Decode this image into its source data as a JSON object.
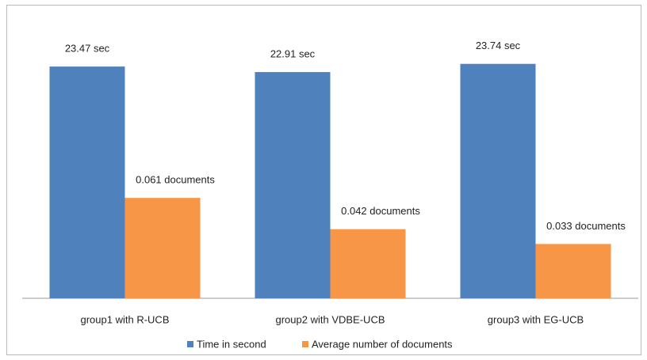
{
  "chart_data": {
    "type": "bar",
    "categories": [
      "group1  with R-UCB",
      "group2 with VDBE-UCB",
      "group3 with EG-UCB"
    ],
    "series": [
      {
        "name": "Time in second",
        "color": "#4f81bd",
        "values": [
          23.47,
          22.91,
          23.74
        ],
        "value_labels": [
          "23.47 sec",
          "22.91 sec",
          "23.74 sec"
        ]
      },
      {
        "name": "Average number of documents",
        "color": "#f79646",
        "axis": "y2",
        "values": [
          0.061,
          0.042,
          0.033
        ],
        "value_labels": [
          "0.061 documents",
          "0.042 documents",
          "0.033 documents"
        ]
      }
    ],
    "ylim": [
      0,
      25
    ],
    "y2lim": [
      0,
      0.15
    ],
    "legend": "bottom"
  }
}
